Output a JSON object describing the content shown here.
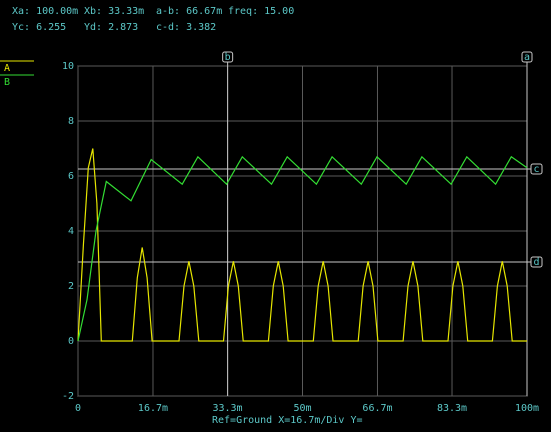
{
  "chart_data": {
    "type": "line",
    "readouts": [
      [
        {
          "label": "Xa:",
          "value": "100.00m"
        },
        {
          "label": "Xb:",
          "value": "33.33m"
        },
        {
          "label": "a-b:",
          "value": "66.67m"
        },
        {
          "label": "freq:",
          "value": "15.00"
        }
      ],
      [
        {
          "label": "Yc:",
          "value": "6.255"
        },
        {
          "label": "Yd:",
          "value": "2.873"
        },
        {
          "label": "c-d:",
          "value": "3.382"
        }
      ]
    ],
    "series": [
      {
        "name": "A",
        "color": "#e6e600",
        "x": [
          0,
          0.0012,
          0.0023,
          0.0033,
          0.0042,
          0.0052,
          0.0121,
          0.0132,
          0.0143,
          0.0154,
          0.0165,
          0.0225,
          0.0236,
          0.0247,
          0.0258,
          0.0269,
          0.0324,
          0.0335,
          0.0346,
          0.0357,
          0.0368,
          0.0424,
          0.0435,
          0.0446,
          0.0457,
          0.0468,
          0.0524,
          0.0535,
          0.0546,
          0.0557,
          0.0568,
          0.0624,
          0.0635,
          0.0646,
          0.0657,
          0.0668,
          0.0724,
          0.0735,
          0.0746,
          0.0757,
          0.0768,
          0.0824,
          0.0835,
          0.0846,
          0.0857,
          0.0868,
          0.0923,
          0.0934,
          0.0945,
          0.0956,
          0.0967,
          0.1
        ],
        "values": [
          0,
          3.5,
          6.3,
          7.0,
          5.0,
          0,
          0,
          2.3,
          3.4,
          2.3,
          0,
          0,
          2.0,
          2.9,
          2.0,
          0,
          0,
          2.0,
          2.9,
          2.0,
          0,
          0,
          2.0,
          2.9,
          2.0,
          0,
          0,
          2.0,
          2.9,
          2.0,
          0,
          0,
          2.0,
          2.9,
          2.0,
          0,
          0,
          2.0,
          2.9,
          2.0,
          0,
          0,
          2.0,
          2.9,
          2.0,
          0,
          0,
          2.0,
          2.9,
          2.0,
          0,
          0
        ]
      },
      {
        "name": "B",
        "color": "#33dd33",
        "x": [
          0,
          0.002,
          0.004,
          0.0063,
          0.0118,
          0.0163,
          0.0232,
          0.0267,
          0.0331,
          0.0366,
          0.0431,
          0.0466,
          0.0531,
          0.0566,
          0.0631,
          0.0666,
          0.0731,
          0.0766,
          0.0831,
          0.0866,
          0.093,
          0.0965,
          0.1
        ],
        "values": [
          0,
          1.5,
          4.0,
          5.8,
          5.1,
          6.6,
          5.7,
          6.7,
          5.7,
          6.7,
          5.7,
          6.7,
          5.7,
          6.7,
          5.7,
          6.7,
          5.7,
          6.7,
          5.7,
          6.7,
          5.7,
          6.7,
          6.3
        ]
      }
    ],
    "xlim": [
      0,
      0.1
    ],
    "xticks": [
      0,
      {
        "value": 0.0167,
        "label": "16.7m"
      },
      {
        "value": 0.0333,
        "label": "33.3m"
      },
      {
        "value": 0.05,
        "label": "50m"
      },
      {
        "value": 0.0667,
        "label": "66.7m"
      },
      {
        "value": 0.0833,
        "label": "83.3m"
      },
      {
        "value": 0.1,
        "label": "100m"
      }
    ],
    "ylim": [
      -2,
      10
    ],
    "yticks": [
      -2,
      0,
      2,
      4,
      6,
      8,
      10
    ],
    "grid": true,
    "cursors": [
      {
        "label": "a",
        "axis": "x",
        "value": 0.1
      },
      {
        "label": "b",
        "axis": "x",
        "value": 0.03333
      },
      {
        "label": "c",
        "axis": "y",
        "value": 6.255
      },
      {
        "label": "d",
        "axis": "y",
        "value": 2.873
      }
    ],
    "footer": "Ref=Ground  X=16.7m/Div Y="
  }
}
